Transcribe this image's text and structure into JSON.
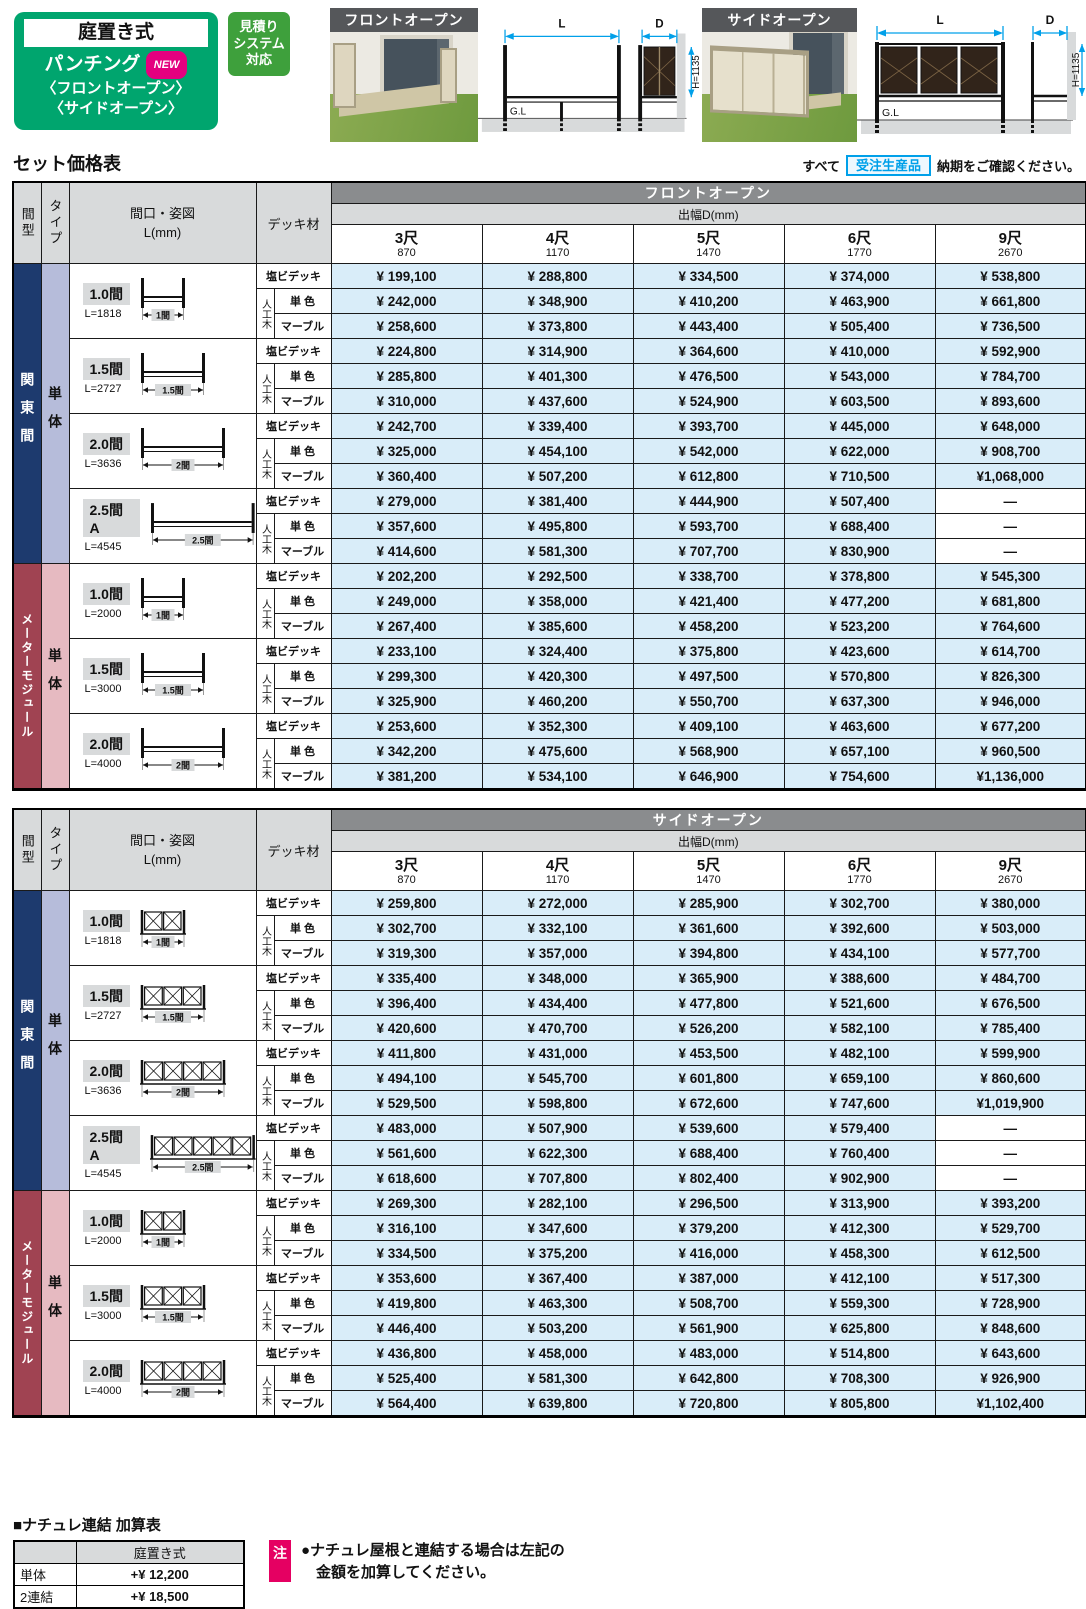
{
  "badge": {
    "band": "庭置き式",
    "line2": "パンチング",
    "new": "NEW",
    "sub": "〈フロントオープン〉\n〈サイドオープン〉",
    "estimate": "見積り\nシステム\n対応"
  },
  "products": [
    {
      "label": "フロントオープン",
      "dims": {
        "L": "L",
        "D": "D",
        "H": "H=1135",
        "GL": "G.L"
      }
    },
    {
      "label": "サイドオープン",
      "dims": {
        "L": "L",
        "D": "D",
        "H": "H=1135",
        "GL": "G.L"
      }
    }
  ],
  "price_section": {
    "title": "セット価格表",
    "note_prefix": "すべて",
    "note_badge": "受注生産品",
    "note_suffix": "納期をご確認ください。"
  },
  "table_common": {
    "col1": "間型",
    "col2": "タイプ",
    "col3": "間口・姿図\nL(mm)",
    "col4": "デッキ材",
    "depth_label": "出幅D(mm)",
    "sizes": [
      {
        "shaku": "3尺",
        "mm": "870"
      },
      {
        "shaku": "4尺",
        "mm": "1170"
      },
      {
        "shaku": "5尺",
        "mm": "1470"
      },
      {
        "shaku": "6尺",
        "mm": "1770"
      },
      {
        "shaku": "9尺",
        "mm": "2670"
      }
    ],
    "deck": {
      "enbi": "塩ビデッキ",
      "jinko": "人工木",
      "tan": "単 色",
      "marble": "マーブル"
    },
    "magata": {
      "kanto": "関東間",
      "meter": "メーターモジュール"
    },
    "type_label": "単体"
  },
  "tables": [
    {
      "title": "フロントオープン",
      "style": "front",
      "groups": [
        {
          "magata_key": "kanto",
          "rows": [
            {
              "label": "1.0間",
              "L": "L=1818",
              "dim": "1間",
              "panels": 0,
              "prices": [
                [
                  "¥ 199,100",
                  "¥ 288,800",
                  "¥ 334,500",
                  "¥ 374,000",
                  "¥ 538,800"
                ],
                [
                  "¥ 242,000",
                  "¥ 348,900",
                  "¥ 410,200",
                  "¥ 463,900",
                  "¥ 661,800"
                ],
                [
                  "¥ 258,600",
                  "¥ 373,800",
                  "¥ 443,400",
                  "¥ 505,400",
                  "¥ 736,500"
                ]
              ]
            },
            {
              "label": "1.5間",
              "L": "L=2727",
              "dim": "1.5間",
              "panels": 0,
              "prices": [
                [
                  "¥ 224,800",
                  "¥ 314,900",
                  "¥ 364,600",
                  "¥ 410,000",
                  "¥ 592,900"
                ],
                [
                  "¥ 285,800",
                  "¥ 401,300",
                  "¥ 476,500",
                  "¥ 543,000",
                  "¥ 784,700"
                ],
                [
                  "¥ 310,000",
                  "¥ 437,600",
                  "¥ 524,900",
                  "¥ 603,500",
                  "¥ 893,600"
                ]
              ]
            },
            {
              "label": "2.0間",
              "L": "L=3636",
              "dim": "2間",
              "panels": 0,
              "prices": [
                [
                  "¥ 242,700",
                  "¥ 339,400",
                  "¥ 393,700",
                  "¥ 445,000",
                  "¥ 648,000"
                ],
                [
                  "¥ 325,000",
                  "¥ 454,100",
                  "¥ 542,000",
                  "¥ 622,000",
                  "¥ 908,700"
                ],
                [
                  "¥ 360,400",
                  "¥ 507,200",
                  "¥ 612,800",
                  "¥ 710,500",
                  "¥1,068,000"
                ]
              ]
            },
            {
              "label": "2.5間A",
              "L": "L=4545",
              "dim": "2.5間",
              "panels": 0,
              "prices": [
                [
                  "¥ 279,000",
                  "¥ 381,400",
                  "¥ 444,900",
                  "¥ 507,400",
                  "—"
                ],
                [
                  "¥ 357,600",
                  "¥ 495,800",
                  "¥ 593,700",
                  "¥ 688,400",
                  "—"
                ],
                [
                  "¥ 414,600",
                  "¥ 581,300",
                  "¥ 707,700",
                  "¥ 830,900",
                  "—"
                ]
              ]
            }
          ]
        },
        {
          "magata_key": "meter",
          "rows": [
            {
              "label": "1.0間",
              "L": "L=2000",
              "dim": "1間",
              "panels": 0,
              "prices": [
                [
                  "¥ 202,200",
                  "¥ 292,500",
                  "¥ 338,700",
                  "¥ 378,800",
                  "¥ 545,300"
                ],
                [
                  "¥ 249,000",
                  "¥ 358,000",
                  "¥ 421,400",
                  "¥ 477,200",
                  "¥ 681,800"
                ],
                [
                  "¥ 267,400",
                  "¥ 385,600",
                  "¥ 458,200",
                  "¥ 523,200",
                  "¥ 764,600"
                ]
              ]
            },
            {
              "label": "1.5間",
              "L": "L=3000",
              "dim": "1.5間",
              "panels": 0,
              "prices": [
                [
                  "¥ 233,100",
                  "¥ 324,400",
                  "¥ 375,800",
                  "¥ 423,600",
                  "¥ 614,700"
                ],
                [
                  "¥ 299,300",
                  "¥ 420,300",
                  "¥ 497,500",
                  "¥ 570,800",
                  "¥ 826,300"
                ],
                [
                  "¥ 325,900",
                  "¥ 460,200",
                  "¥ 550,700",
                  "¥ 637,300",
                  "¥ 946,000"
                ]
              ]
            },
            {
              "label": "2.0間",
              "L": "L=4000",
              "dim": "2間",
              "panels": 0,
              "prices": [
                [
                  "¥ 253,600",
                  "¥ 352,300",
                  "¥ 409,100",
                  "¥ 463,600",
                  "¥ 677,200"
                ],
                [
                  "¥ 342,200",
                  "¥ 475,600",
                  "¥ 568,900",
                  "¥ 657,100",
                  "¥ 960,500"
                ],
                [
                  "¥ 381,200",
                  "¥ 534,100",
                  "¥ 646,900",
                  "¥ 754,600",
                  "¥1,136,000"
                ]
              ]
            }
          ]
        }
      ]
    },
    {
      "title": "サイドオープン",
      "style": "side",
      "groups": [
        {
          "magata_key": "kanto",
          "rows": [
            {
              "label": "1.0間",
              "L": "L=1818",
              "dim": "1間",
              "panels": 2,
              "prices": [
                [
                  "¥ 259,800",
                  "¥ 272,000",
                  "¥ 285,900",
                  "¥ 302,700",
                  "¥ 380,000"
                ],
                [
                  "¥ 302,700",
                  "¥ 332,100",
                  "¥ 361,600",
                  "¥ 392,600",
                  "¥ 503,000"
                ],
                [
                  "¥ 319,300",
                  "¥ 357,000",
                  "¥ 394,800",
                  "¥ 434,100",
                  "¥ 577,700"
                ]
              ]
            },
            {
              "label": "1.5間",
              "L": "L=2727",
              "dim": "1.5間",
              "panels": 3,
              "prices": [
                [
                  "¥ 335,400",
                  "¥ 348,000",
                  "¥ 365,900",
                  "¥ 388,600",
                  "¥ 484,700"
                ],
                [
                  "¥ 396,400",
                  "¥ 434,400",
                  "¥ 477,800",
                  "¥ 521,600",
                  "¥ 676,500"
                ],
                [
                  "¥ 420,600",
                  "¥ 470,700",
                  "¥ 526,200",
                  "¥ 582,100",
                  "¥ 785,400"
                ]
              ]
            },
            {
              "label": "2.0間",
              "L": "L=3636",
              "dim": "2間",
              "panels": 4,
              "prices": [
                [
                  "¥ 411,800",
                  "¥ 431,000",
                  "¥ 453,500",
                  "¥ 482,100",
                  "¥ 599,900"
                ],
                [
                  "¥ 494,100",
                  "¥ 545,700",
                  "¥ 601,800",
                  "¥ 659,100",
                  "¥ 860,600"
                ],
                [
                  "¥ 529,500",
                  "¥ 598,800",
                  "¥ 672,600",
                  "¥ 747,600",
                  "¥1,019,900"
                ]
              ]
            },
            {
              "label": "2.5間A",
              "L": "L=4545",
              "dim": "2.5間",
              "panels": 5,
              "prices": [
                [
                  "¥ 483,000",
                  "¥ 507,900",
                  "¥ 539,600",
                  "¥ 579,400",
                  "—"
                ],
                [
                  "¥ 561,600",
                  "¥ 622,300",
                  "¥ 688,400",
                  "¥ 760,400",
                  "—"
                ],
                [
                  "¥ 618,600",
                  "¥ 707,800",
                  "¥ 802,400",
                  "¥ 902,900",
                  "—"
                ]
              ]
            }
          ]
        },
        {
          "magata_key": "meter",
          "rows": [
            {
              "label": "1.0間",
              "L": "L=2000",
              "dim": "1間",
              "panels": 2,
              "prices": [
                [
                  "¥ 269,300",
                  "¥ 282,100",
                  "¥ 296,500",
                  "¥ 313,900",
                  "¥ 393,200"
                ],
                [
                  "¥ 316,100",
                  "¥ 347,600",
                  "¥ 379,200",
                  "¥ 412,300",
                  "¥ 529,700"
                ],
                [
                  "¥ 334,500",
                  "¥ 375,200",
                  "¥ 416,000",
                  "¥ 458,300",
                  "¥ 612,500"
                ]
              ]
            },
            {
              "label": "1.5間",
              "L": "L=3000",
              "dim": "1.5間",
              "panels": 3,
              "prices": [
                [
                  "¥ 353,600",
                  "¥ 367,400",
                  "¥ 387,000",
                  "¥ 412,100",
                  "¥ 517,300"
                ],
                [
                  "¥ 419,800",
                  "¥ 463,300",
                  "¥ 508,700",
                  "¥ 559,300",
                  "¥ 728,900"
                ],
                [
                  "¥ 446,400",
                  "¥ 503,200",
                  "¥ 561,900",
                  "¥ 625,800",
                  "¥ 848,600"
                ]
              ]
            },
            {
              "label": "2.0間",
              "L": "L=4000",
              "dim": "2間",
              "panels": 4,
              "prices": [
                [
                  "¥ 436,800",
                  "¥ 458,000",
                  "¥ 483,000",
                  "¥ 514,800",
                  "¥ 643,600"
                ],
                [
                  "¥ 525,400",
                  "¥ 581,300",
                  "¥ 642,800",
                  "¥ 708,300",
                  "¥ 926,900"
                ],
                [
                  "¥ 564,400",
                  "¥ 639,800",
                  "¥ 720,800",
                  "¥ 805,800",
                  "¥1,102,400"
                ]
              ]
            }
          ]
        }
      ]
    }
  ],
  "addition": {
    "heading": "■ナチュレ連結 加算表",
    "col_header": "庭置き式",
    "rows": [
      {
        "label": "単体",
        "value": "+¥  12,200"
      },
      {
        "label": "2連結",
        "value": "+¥  18,500"
      }
    ],
    "note_badge": "注",
    "note_line1": "●ナチュレ屋根と連結する場合は左記の",
    "note_line2": "金額を加算してください。"
  }
}
